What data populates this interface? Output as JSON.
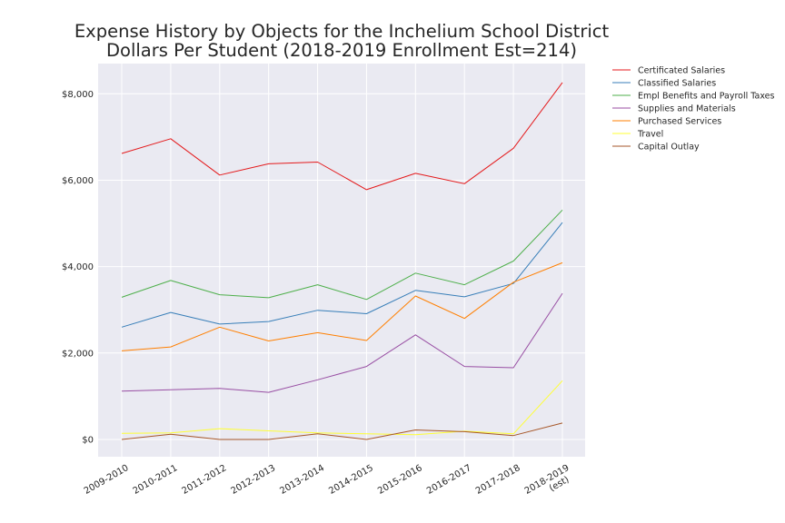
{
  "chart_data": {
    "type": "line",
    "title_lines": [
      "Expense History by Objects for the Inchelium School District",
      "Dollars Per Student (2018-2019 Enrollment Est=214)"
    ],
    "xlabel": "",
    "ylabel": "",
    "categories": [
      "2009-2010",
      "2010-2011",
      "2011-2012",
      "2012-2013",
      "2013-2014",
      "2014-2015",
      "2015-2016",
      "2016-2017",
      "2017-2018",
      "2018-2019\n(est)"
    ],
    "ylim": [
      -400,
      8700
    ],
    "yticks": [
      0,
      2000,
      4000,
      6000,
      8000
    ],
    "ytick_labels": [
      "$0",
      "$2,000",
      "$4,000",
      "$6,000",
      "$8,000"
    ],
    "grid": true,
    "legend_position": "outside-top-right",
    "series": [
      {
        "name": "Certificated Salaries",
        "color": "#e41a1c",
        "values": [
          6620,
          6960,
          6120,
          6380,
          6420,
          5780,
          6160,
          5920,
          6740,
          8260
        ]
      },
      {
        "name": "Classified Salaries",
        "color": "#377eb8",
        "values": [
          2600,
          2940,
          2670,
          2730,
          2990,
          2910,
          3450,
          3300,
          3610,
          5020
        ]
      },
      {
        "name": "Empl Benefits and Payroll Taxes",
        "color": "#4daf4a",
        "values": [
          3290,
          3680,
          3350,
          3280,
          3580,
          3240,
          3850,
          3580,
          4130,
          5310
        ]
      },
      {
        "name": "Supplies and Materials",
        "color": "#984ea3",
        "values": [
          1120,
          1150,
          1180,
          1090,
          1380,
          1690,
          2420,
          1690,
          1660,
          3380
        ]
      },
      {
        "name": "Purchased Services",
        "color": "#ff7f00",
        "values": [
          2050,
          2140,
          2600,
          2280,
          2470,
          2290,
          3320,
          2800,
          3640,
          4090
        ]
      },
      {
        "name": "Travel",
        "color": "#ffff33",
        "values": [
          140,
          150,
          250,
          200,
          150,
          130,
          110,
          190,
          130,
          1360
        ]
      },
      {
        "name": "Capital Outlay",
        "color": "#a65628",
        "values": [
          0,
          120,
          0,
          0,
          130,
          0,
          220,
          180,
          90,
          380
        ]
      }
    ]
  }
}
